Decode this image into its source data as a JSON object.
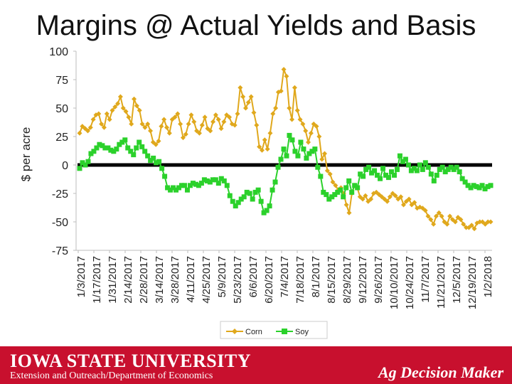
{
  "slide": {
    "title": "Margins @ Actual Yields and Basis"
  },
  "footer": {
    "university": "IOWA STATE UNIVERSITY",
    "department": "Extension and Outreach/Department of Economics",
    "brand": "Ag Decision Maker",
    "background_color": "#c8102e"
  },
  "chart_data": {
    "type": "line",
    "title": "",
    "ylabel": "$ per acre",
    "xlabel": "",
    "ylim": [
      -75,
      100
    ],
    "yticks": [
      100,
      75,
      50,
      25,
      0,
      -25,
      -50,
      -75
    ],
    "ytick_labels": [
      "100",
      "75",
      "50",
      "25",
      "0",
      "-25",
      "-50",
      "-75"
    ],
    "xtick_labels": [
      "1/3/2017",
      "1/17/2017",
      "1/31/2017",
      "2/14/2017",
      "2/28/2017",
      "3/14/2017",
      "3/28/2017",
      "4/11/2017",
      "4/25/2017",
      "5/9/2017",
      "5/23/2017",
      "6/6/2017",
      "6/20/2017",
      "7/4/2017",
      "7/18/2017",
      "8/1/2017",
      "8/15/2017",
      "8/29/2017",
      "9/12/2017",
      "9/26/2017",
      "10/10/2017",
      "10/24/2017",
      "11/7/2017",
      "11/21/2017",
      "12/5/2017",
      "12/19/2017",
      "1/2/2018"
    ],
    "zero_line": true,
    "grid": false,
    "legend_position": "bottom",
    "series": [
      {
        "name": "Corn",
        "color": "#e0a81c",
        "values": [
          28,
          34,
          32,
          30,
          33,
          40,
          44,
          45,
          36,
          33,
          45,
          40,
          48,
          51,
          54,
          60,
          50,
          47,
          42,
          36,
          58,
          52,
          48,
          36,
          33,
          36,
          30,
          20,
          18,
          21,
          34,
          40,
          33,
          28,
          40,
          42,
          45,
          36,
          24,
          27,
          36,
          44,
          38,
          30,
          28,
          35,
          42,
          32,
          30,
          38,
          44,
          40,
          32,
          38,
          44,
          42,
          36,
          35,
          45,
          68,
          60,
          50,
          55,
          60,
          46,
          35,
          16,
          13,
          22,
          14,
          28,
          45,
          50,
          64,
          65,
          84,
          78,
          50,
          40,
          68,
          48,
          40,
          36,
          30,
          20,
          28,
          36,
          34,
          25,
          5,
          10,
          -5,
          -8,
          -15,
          -18,
          -22,
          -20,
          -25,
          -35,
          -42,
          -25,
          -18,
          -20,
          -28,
          -30,
          -27,
          -32,
          -30,
          -25,
          -24,
          -26,
          -28,
          -30,
          -32,
          -28,
          -25,
          -27,
          -30,
          -28,
          -35,
          -32,
          -30,
          -35,
          -33,
          -38,
          -37,
          -38,
          -40,
          -45,
          -48,
          -52,
          -45,
          -42,
          -45,
          -50,
          -52,
          -45,
          -48,
          -50,
          -46,
          -48,
          -52,
          -55,
          -55,
          -53,
          -56,
          -51,
          -50,
          -50,
          -52,
          -50,
          -50
        ]
      },
      {
        "name": "Soy",
        "color": "#2bd12b",
        "values": [
          -3,
          2,
          0,
          3,
          10,
          12,
          15,
          18,
          17,
          15,
          15,
          13,
          12,
          14,
          18,
          20,
          22,
          15,
          12,
          9,
          15,
          20,
          16,
          12,
          8,
          4,
          6,
          2,
          3,
          -3,
          -10,
          -20,
          -22,
          -20,
          -22,
          -20,
          -18,
          -18,
          -22,
          -18,
          -16,
          -17,
          -18,
          -16,
          -13,
          -14,
          -15,
          -13,
          -13,
          -16,
          -12,
          -14,
          -18,
          -27,
          -32,
          -36,
          -33,
          -30,
          -28,
          -24,
          -25,
          -30,
          -24,
          -22,
          -32,
          -42,
          -40,
          -36,
          -22,
          -15,
          -2,
          5,
          14,
          8,
          26,
          22,
          12,
          8,
          20,
          14,
          6,
          10,
          12,
          14,
          -2,
          -10,
          -24,
          -26,
          -30,
          -28,
          -26,
          -24,
          -22,
          -28,
          -20,
          -14,
          -24,
          -18,
          -20,
          -8,
          -10,
          -4,
          -2,
          -7,
          -5,
          -9,
          -12,
          -3,
          -9,
          -11,
          -6,
          -9,
          -4,
          8,
          3,
          5,
          0,
          -5,
          -3,
          -5,
          0,
          -4,
          2,
          -2,
          -8,
          -14,
          -9,
          -4,
          -2,
          -6,
          -4,
          -2,
          -4,
          -2,
          -6,
          -12,
          -15,
          -18,
          -20,
          -18,
          -19,
          -20,
          -18,
          -21,
          -19,
          -18
        ]
      }
    ]
  }
}
